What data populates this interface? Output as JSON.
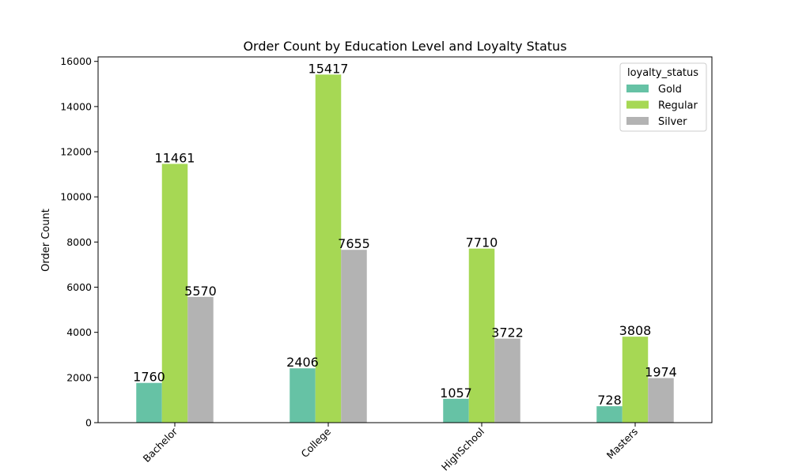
{
  "chart_data": {
    "type": "bar",
    "title": "Order Count by Education Level and Loyalty Status",
    "xlabel": "",
    "ylabel": "Order Count",
    "categories": [
      "Bachelor",
      "College",
      "HighSchool",
      "Masters"
    ],
    "series": [
      {
        "name": "Gold",
        "color": "#66c2a5",
        "values": [
          1760,
          2406,
          1057,
          728
        ]
      },
      {
        "name": "Regular",
        "color": "#a6d854",
        "values": [
          11461,
          15417,
          7710,
          3808
        ]
      },
      {
        "name": "Silver",
        "color": "#b3b3b3",
        "values": [
          5570,
          7655,
          3722,
          1974
        ]
      }
    ],
    "ylim": [
      0,
      16200
    ],
    "yticks": [
      0,
      2000,
      4000,
      6000,
      8000,
      10000,
      12000,
      14000,
      16000
    ],
    "grid": false,
    "legend": {
      "title": "loyalty_status",
      "placement": "top-right"
    }
  }
}
